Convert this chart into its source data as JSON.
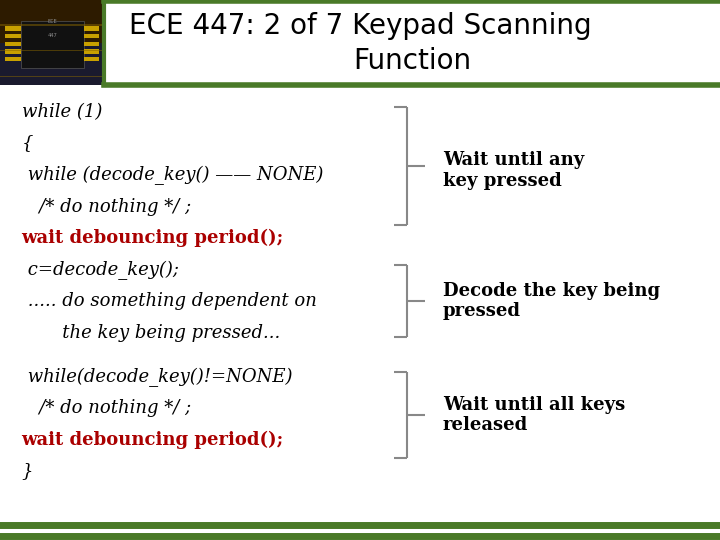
{
  "title_line1": "ECE 447: 2 of 7 Keypad Scanning",
  "title_line2": "Function",
  "title_fontsize": 20,
  "title_bg": "#eef5d0",
  "title_bar_color": "#4a7a28",
  "body_bg": "#ffffff",
  "bottom_bar_color": "#4a7a28",
  "code_color": "#000000",
  "red_color": "#aa0000",
  "annotation_color": "#000000",
  "code_block1": [
    {
      "text": "while (1)",
      "color": "#000000",
      "bold": false
    },
    {
      "text": "{",
      "color": "#000000",
      "bold": false
    },
    {
      "text": " while (decode_key() —— NONE)",
      "color": "#000000",
      "bold": false
    },
    {
      "text": "   /* do nothing */ ;",
      "color": "#000000",
      "bold": false
    },
    {
      "text": "wait debouncing period();",
      "color": "#aa0000",
      "bold": true
    },
    {
      "text": " c=decode_key();",
      "color": "#000000",
      "bold": false
    },
    {
      "text": " ..... do something dependent on",
      "color": "#000000",
      "bold": false
    },
    {
      "text": "       the key being pressed...",
      "color": "#000000",
      "bold": false
    }
  ],
  "code_block2": [
    {
      "text": " while(decode_key()!=NONE)",
      "color": "#000000",
      "bold": false
    },
    {
      "text": "   /* do nothing */ ;",
      "color": "#000000",
      "bold": false
    },
    {
      "text": "wait debouncing period();",
      "color": "#aa0000",
      "bold": true
    },
    {
      "text": "}",
      "color": "#000000",
      "bold": false
    }
  ],
  "annot1": "Wait until any\nkey pressed",
  "annot2": "Decode the key being\npressed",
  "annot3": "Wait until all keys\nreleased",
  "annot_fontsize": 13,
  "code_fontsize": 13
}
